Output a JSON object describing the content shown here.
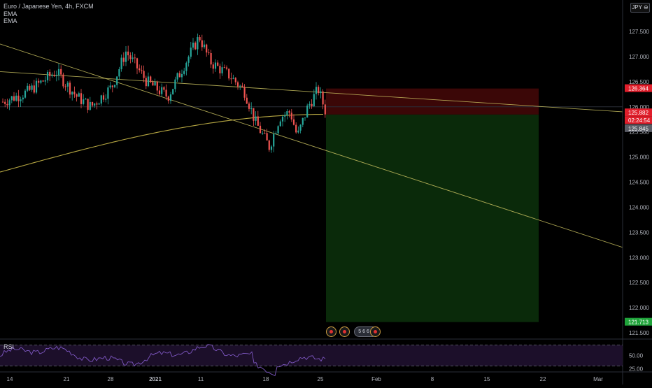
{
  "legend": {
    "symbol_line": "Euro / Japanese Yen, 4h, FXCM",
    "indicators": [
      "EMA",
      "EMA"
    ]
  },
  "currency_button": "JPY",
  "currency_suffix": "⊖",
  "rsi_label": "RSI",
  "events_group_label": "5 6 6 2",
  "colors": {
    "background": "#000000",
    "candle_up": "#26a69a",
    "candle_down": "#ef5350",
    "ema_line": "#b5a642",
    "trendline": "#c8c060",
    "stop_zone": "#3b0707",
    "target_zone": "#0a2a0a",
    "rsi_line": "#7e57c2",
    "rsi_band": "#1c0f2a"
  },
  "chart_data": {
    "type": "candlestick",
    "title": "Euro / Japanese Yen, 4h, FXCM",
    "price_axis": {
      "ticks": [
        "127.500",
        "127.000",
        "126.500",
        "126.000",
        "125.500",
        "125.000",
        "124.500",
        "124.000",
        "123.500",
        "123.000",
        "122.500",
        "122.000",
        "121.500"
      ],
      "ylim": [
        121.4,
        127.75
      ]
    },
    "x_axis": {
      "ticks": [
        "14",
        "21",
        "28",
        "2021",
        "11",
        "18",
        "25",
        "Feb",
        "8",
        "15",
        "22",
        "Mar"
      ]
    },
    "price_labels": [
      {
        "value": "126.364",
        "role": "stop-loss",
        "color": "#e01e2b"
      },
      {
        "value": "125.882",
        "role": "current-price",
        "color": "#e01e2b"
      },
      {
        "value": "02:24:54",
        "role": "countdown",
        "color": "#e01e2b"
      },
      {
        "value": "125.845",
        "role": "ema",
        "color": "#5a5d66"
      },
      {
        "value": "121.713",
        "role": "take-profit",
        "color": "#1fa33a"
      }
    ],
    "position": {
      "type": "short",
      "entry": 125.845,
      "stop": 126.364,
      "target": 121.713
    },
    "ema": {
      "y_start": 124.7,
      "y_bend": 125.85,
      "y_end": 125.95
    },
    "trendlines": [
      {
        "y_left": 126.7,
        "y_right": 125.9
      },
      {
        "y_left": 127.25,
        "y_right": 123.2
      }
    ],
    "rsi": {
      "levels_printed": [
        "50.00",
        "25.00"
      ],
      "ylim": [
        20,
        80
      ],
      "upper_band": 70,
      "lower_band": 30
    }
  }
}
